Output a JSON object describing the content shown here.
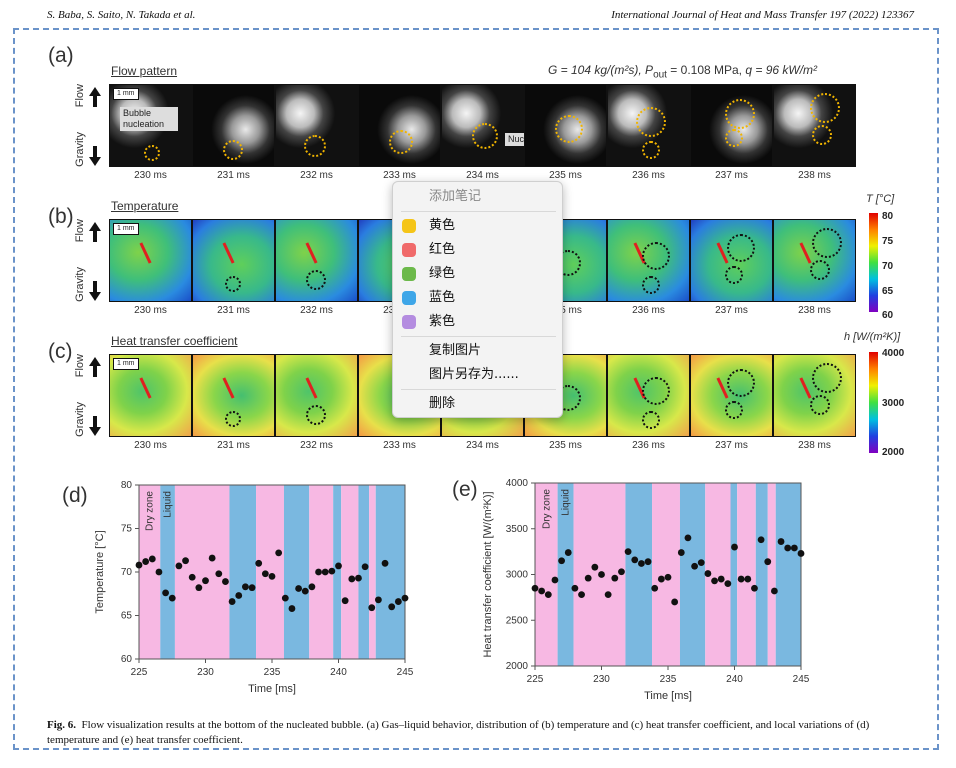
{
  "header": {
    "authors": "S. Baba, S. Saito, N. Takada et al.",
    "journal": "International Journal of Heat and Mass Transfer 197 (2022) 123367"
  },
  "panels": {
    "a": {
      "label": "(a)",
      "title": "Flow pattern",
      "scale": "1 mm",
      "annot1": "Bubble nucleation",
      "annot2": "Nucleation"
    },
    "b": {
      "label": "(b)",
      "title": "Temperature",
      "scale": "1 mm",
      "cbar_title": "T [°C]",
      "cbar_ticks": [
        "80",
        "75",
        "70",
        "65",
        "60"
      ]
    },
    "c": {
      "label": "(c)",
      "title": "Heat transfer coefficient",
      "scale": "1 mm",
      "cbar_title": "h [W/(m²K)]",
      "cbar_ticks": [
        "4000",
        "3000",
        "2000"
      ]
    },
    "d": {
      "label": "(d)"
    },
    "e": {
      "label": "(e)"
    }
  },
  "conditions": {
    "g": "G = 104 kg/(m²s),",
    "p": "P",
    "p_sub": "out",
    "p_rest": " = 0.108 MPa,",
    "q": "q = 96 kW/m²"
  },
  "side": {
    "flow": "Flow",
    "gravity": "Gravity"
  },
  "timestamps": [
    "230 ms",
    "231 ms",
    "232 ms",
    "233 ms",
    "234 ms",
    "235 ms",
    "236 ms",
    "237 ms",
    "238 ms"
  ],
  "chart_data": [
    {
      "type": "scatter",
      "title": "",
      "xlabel": "Time [ms]",
      "ylabel": "Temperature [°C]",
      "xlim": [
        225,
        245
      ],
      "ylim": [
        60,
        80
      ],
      "xticks": [
        225,
        230,
        235,
        240,
        245
      ],
      "yticks": [
        60,
        65,
        70,
        75,
        80
      ],
      "zone_labels": [
        "Dry zone",
        "Liquid"
      ],
      "zones": [
        {
          "type": "dry",
          "x0": 225,
          "x1": 226.6
        },
        {
          "type": "liquid",
          "x0": 226.6,
          "x1": 227.7
        },
        {
          "type": "dry",
          "x0": 227.7,
          "x1": 231.8
        },
        {
          "type": "liquid",
          "x0": 231.8,
          "x1": 233.8
        },
        {
          "type": "dry",
          "x0": 233.8,
          "x1": 235.9
        },
        {
          "type": "liquid",
          "x0": 235.9,
          "x1": 237.8
        },
        {
          "type": "dry",
          "x0": 237.8,
          "x1": 239.6
        },
        {
          "type": "liquid",
          "x0": 239.6,
          "x1": 240.2
        },
        {
          "type": "dry",
          "x0": 240.2,
          "x1": 241.5
        },
        {
          "type": "liquid",
          "x0": 241.5,
          "x1": 242.3
        },
        {
          "type": "dry",
          "x0": 242.3,
          "x1": 242.8
        },
        {
          "type": "liquid",
          "x0": 242.8,
          "x1": 245
        }
      ],
      "x": [
        225,
        225.5,
        226,
        226.5,
        227,
        227.5,
        228,
        228.5,
        229,
        229.5,
        230,
        230.5,
        231,
        231.5,
        232,
        232.5,
        233,
        233.5,
        234,
        234.5,
        235,
        235.5,
        236,
        236.5,
        237,
        237.5,
        238,
        238.5,
        239,
        239.5,
        240,
        240.5,
        241,
        241.5,
        242,
        242.5,
        243,
        243.5,
        244,
        244.5,
        245
      ],
      "y": [
        70.8,
        71.2,
        71.5,
        70.0,
        67.6,
        67.0,
        70.7,
        71.3,
        69.4,
        68.2,
        69.0,
        71.6,
        69.8,
        68.9,
        66.6,
        67.3,
        68.3,
        68.2,
        71.0,
        69.8,
        69.5,
        72.2,
        67.0,
        65.8,
        68.1,
        67.8,
        68.3,
        70.0,
        70.0,
        70.1,
        70.7,
        66.7,
        69.2,
        69.3,
        70.6,
        65.9,
        66.8,
        71.0,
        66.0,
        66.6,
        67.0
      ]
    },
    {
      "type": "scatter",
      "title": "",
      "xlabel": "Time [ms]",
      "ylabel": "Heat transfer coefficient [W/(m²K)]",
      "xlim": [
        225,
        245
      ],
      "ylim": [
        2000,
        4000
      ],
      "xticks": [
        225,
        230,
        235,
        240,
        245
      ],
      "yticks": [
        2000,
        2500,
        3000,
        3500,
        4000
      ],
      "zone_labels": [
        "Dry zone",
        "Liquid"
      ],
      "zones": [
        {
          "type": "dry",
          "x0": 225,
          "x1": 226.7
        },
        {
          "type": "liquid",
          "x0": 226.7,
          "x1": 227.9
        },
        {
          "type": "dry",
          "x0": 227.9,
          "x1": 231.8
        },
        {
          "type": "liquid",
          "x0": 231.8,
          "x1": 233.8
        },
        {
          "type": "dry",
          "x0": 233.8,
          "x1": 235.9
        },
        {
          "type": "liquid",
          "x0": 235.9,
          "x1": 237.8
        },
        {
          "type": "dry",
          "x0": 237.8,
          "x1": 239.7
        },
        {
          "type": "liquid",
          "x0": 239.7,
          "x1": 240.2
        },
        {
          "type": "dry",
          "x0": 240.2,
          "x1": 241.6
        },
        {
          "type": "liquid",
          "x0": 241.6,
          "x1": 242.5
        },
        {
          "type": "dry",
          "x0": 242.5,
          "x1": 243.1
        },
        {
          "type": "liquid",
          "x0": 243.1,
          "x1": 245
        }
      ],
      "x": [
        225,
        225.5,
        226,
        226.5,
        227,
        227.5,
        228,
        228.5,
        229,
        229.5,
        230,
        230.5,
        231,
        231.5,
        232,
        232.5,
        233,
        233.5,
        234,
        234.5,
        235,
        235.5,
        236,
        236.5,
        237,
        237.5,
        238,
        238.5,
        239,
        239.5,
        240,
        240.5,
        241,
        241.5,
        242,
        242.5,
        243,
        243.5,
        244,
        244.5,
        245
      ],
      "y": [
        2850,
        2820,
        2780,
        2940,
        3150,
        3240,
        2850,
        2780,
        2960,
        3080,
        3000,
        2780,
        2960,
        3030,
        3250,
        3160,
        3120,
        3140,
        2850,
        2950,
        2970,
        2700,
        3240,
        3400,
        3090,
        3130,
        3010,
        2930,
        2950,
        2900,
        3300,
        2950,
        2950,
        2850,
        3380,
        3140,
        2820,
        3360,
        3290,
        3290,
        3230
      ]
    }
  ],
  "caption": {
    "label": "Fig. 6.",
    "text": "Flow visualization results at the bottom of the nucleated bubble. (a) Gas–liquid behavior, distribution of (b) temperature and (c) heat transfer coefficient, and local variations of (d) temperature and (e) heat transfer coefficient."
  },
  "context_menu": {
    "header": "添加笔记",
    "colors": [
      {
        "label": "黄色",
        "color": "#f5c518"
      },
      {
        "label": "红色",
        "color": "#f06a6a"
      },
      {
        "label": "绿色",
        "color": "#6cb94a"
      },
      {
        "label": "蓝色",
        "color": "#3ea6e8"
      },
      {
        "label": "紫色",
        "color": "#b48ce0"
      }
    ],
    "copy_image": "复制图片",
    "save_image_as": "图片另存为......",
    "delete": "删除"
  },
  "colors": {
    "dry_zone": "#f7b8e3",
    "liquid_zone": "#7ab8e0",
    "frame_border": "#6b93c9"
  }
}
